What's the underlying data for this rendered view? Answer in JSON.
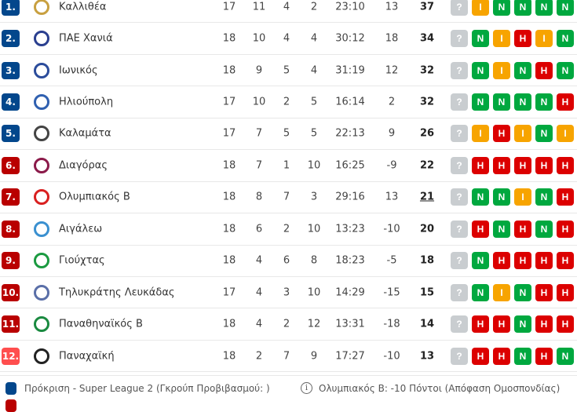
{
  "colors": {
    "promotion": "#03478c",
    "relegation": "#b90000",
    "last": "#ff4e4e",
    "win": "#00a83f",
    "draw": "#f7a400",
    "loss": "#dc0000",
    "unknown": "#c9cdd0"
  },
  "form_letters": {
    "W": "N",
    "D": "I",
    "L": "H",
    "?": "?"
  },
  "rows": [
    {
      "rank": "1.",
      "zone": "promotion",
      "team": "Καλλιθέα",
      "logo": "kallithea-logo",
      "p": "17",
      "w": "11",
      "d": "4",
      "l": "2",
      "goals": "23:10",
      "diff": "13",
      "pts": "37",
      "form": [
        "?",
        "D",
        "W",
        "W",
        "W",
        "W"
      ]
    },
    {
      "rank": "2.",
      "zone": "promotion",
      "team": "ΠΑΕ Χανιά",
      "logo": "chania-logo",
      "p": "18",
      "w": "10",
      "d": "4",
      "l": "4",
      "goals": "30:12",
      "diff": "18",
      "pts": "34",
      "form": [
        "?",
        "W",
        "D",
        "L",
        "D",
        "W"
      ]
    },
    {
      "rank": "3.",
      "zone": "promotion",
      "team": "Ιωνικός",
      "logo": "ionikos-logo",
      "p": "18",
      "w": "9",
      "d": "5",
      "l": "4",
      "goals": "31:19",
      "diff": "12",
      "pts": "32",
      "form": [
        "?",
        "W",
        "D",
        "W",
        "L",
        "W"
      ]
    },
    {
      "rank": "4.",
      "zone": "promotion",
      "team": "Ηλιούπολη",
      "logo": "ilioupoli-logo",
      "p": "17",
      "w": "10",
      "d": "2",
      "l": "5",
      "goals": "16:14",
      "diff": "2",
      "pts": "32",
      "form": [
        "?",
        "W",
        "W",
        "W",
        "W",
        "L"
      ]
    },
    {
      "rank": "5.",
      "zone": "promotion",
      "team": "Καλαμάτα",
      "logo": "kalamata-logo",
      "p": "17",
      "w": "7",
      "d": "5",
      "l": "5",
      "goals": "22:13",
      "diff": "9",
      "pts": "26",
      "form": [
        "?",
        "D",
        "L",
        "D",
        "W",
        "D"
      ]
    },
    {
      "rank": "6.",
      "zone": "relegation",
      "team": "Διαγόρας",
      "logo": "diagoras-logo",
      "p": "18",
      "w": "7",
      "d": "1",
      "l": "10",
      "goals": "16:25",
      "diff": "-9",
      "pts": "22",
      "form": [
        "?",
        "L",
        "L",
        "L",
        "L",
        "L"
      ]
    },
    {
      "rank": "7.",
      "zone": "relegation",
      "team": "Ολυμπιακός Β",
      "logo": "olympiacos-b-logo",
      "p": "18",
      "w": "8",
      "d": "7",
      "l": "3",
      "goals": "29:16",
      "diff": "13",
      "pts": "21",
      "pts_underlined": true,
      "form": [
        "?",
        "W",
        "W",
        "D",
        "W",
        "L"
      ]
    },
    {
      "rank": "8.",
      "zone": "relegation",
      "team": "Αιγάλεω",
      "logo": "aigaleo-logo",
      "p": "18",
      "w": "6",
      "d": "2",
      "l": "10",
      "goals": "13:23",
      "diff": "-10",
      "pts": "20",
      "form": [
        "?",
        "L",
        "W",
        "L",
        "W",
        "L"
      ]
    },
    {
      "rank": "9.",
      "zone": "relegation",
      "team": "Γιούχτας",
      "logo": "giouchtas-logo",
      "p": "18",
      "w": "4",
      "d": "6",
      "l": "8",
      "goals": "18:23",
      "diff": "-5",
      "pts": "18",
      "form": [
        "?",
        "W",
        "L",
        "L",
        "L",
        "L"
      ]
    },
    {
      "rank": "10.",
      "zone": "relegation",
      "team": "Τηλυκράτης Λευκάδας",
      "logo": "tilikratis-logo",
      "p": "17",
      "w": "4",
      "d": "3",
      "l": "10",
      "goals": "14:29",
      "diff": "-15",
      "pts": "15",
      "form": [
        "?",
        "W",
        "D",
        "W",
        "L",
        "L"
      ]
    },
    {
      "rank": "11.",
      "zone": "relegation",
      "team": "Παναθηναϊκός Β",
      "logo": "panathinaikos-b-logo",
      "p": "18",
      "w": "4",
      "d": "2",
      "l": "12",
      "goals": "13:31",
      "diff": "-18",
      "pts": "14",
      "form": [
        "?",
        "L",
        "L",
        "W",
        "L",
        "L"
      ]
    },
    {
      "rank": "12.",
      "zone": "last",
      "team": "Παναχαϊκή",
      "logo": "panachaiki-logo",
      "p": "18",
      "w": "2",
      "d": "7",
      "l": "9",
      "goals": "17:27",
      "diff": "-10",
      "pts": "13",
      "form": [
        "?",
        "L",
        "L",
        "W",
        "L",
        "W"
      ]
    }
  ],
  "legend": {
    "promotion": "Πρόκριση - Super League 2 (Γκρούπ Προβιβασμού: )",
    "note": "Ολυμπιακός Β: -10 Πόντοι (Απόφαση Ομοσπονδίας)"
  }
}
